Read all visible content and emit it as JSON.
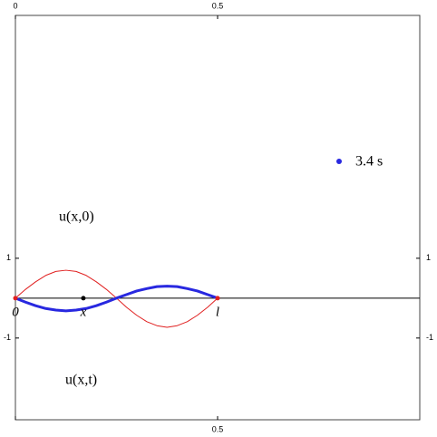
{
  "chart_data": {
    "type": "line",
    "x": [
      0,
      0.025,
      0.05,
      0.075,
      0.1,
      0.125,
      0.15,
      0.175,
      0.2,
      0.225,
      0.25,
      0.275,
      0.3,
      0.325,
      0.35,
      0.375,
      0.4,
      0.425,
      0.45,
      0.475,
      0.5
    ],
    "series": [
      {
        "name": "u(x,0)",
        "color": "#e02020",
        "width": 1,
        "values": [
          0,
          0.22,
          0.41,
          0.57,
          0.67,
          0.7,
          0.67,
          0.57,
          0.41,
          0.22,
          0,
          -0.23,
          -0.43,
          -0.59,
          -0.69,
          -0.73,
          -0.69,
          -0.59,
          -0.43,
          -0.23,
          0
        ]
      },
      {
        "name": "u(x,t)",
        "color": "#2828e0",
        "width": 3,
        "values": [
          0,
          -0.1,
          -0.19,
          -0.26,
          -0.3,
          -0.32,
          -0.3,
          -0.26,
          -0.19,
          -0.1,
          0,
          0.09,
          0.18,
          0.24,
          0.29,
          0.3,
          0.29,
          0.24,
          0.18,
          0.09,
          0
        ]
      }
    ],
    "points": [
      {
        "x": 0,
        "y": 0,
        "label": "0",
        "color": "#e02020"
      },
      {
        "x": 0.168,
        "y": 0,
        "label": "x",
        "color": "#000000"
      },
      {
        "x": 0.5,
        "y": 0,
        "label": "l",
        "color": "#e02020"
      }
    ],
    "time_label": "3.4 s",
    "time_color": "#2828e0",
    "xlim": [
      0,
      1
    ],
    "ylim": [
      -3.05,
      7.09
    ],
    "xticks": [
      0,
      0.5
    ],
    "yticks": [
      -1,
      1
    ]
  }
}
